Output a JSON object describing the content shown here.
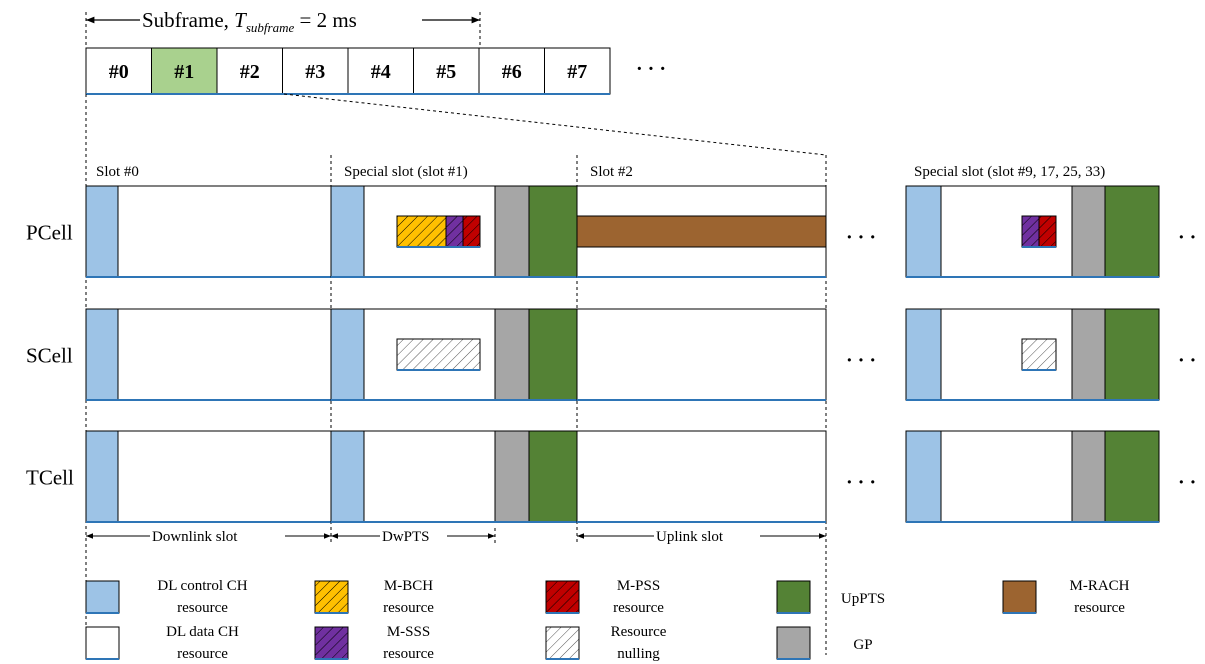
{
  "header": {
    "subframe_prefix": "Subframe, ",
    "subframe_T": "T",
    "subframe_T_sub": "subframe",
    "subframe_value": " = 2 ms",
    "subframes": [
      "#0",
      "#1",
      "#2",
      "#3",
      "#4",
      "#5",
      "#6",
      "#7"
    ],
    "highlighted_subframe": 1,
    "ellipsis": "· · ·"
  },
  "slots": {
    "slot0": "Slot #0",
    "special_slot": "Special slot (slot #1)",
    "slot2": "Slot #2",
    "special_slot_right": "Special slot (slot #9, 17, 25, 33)"
  },
  "cells": [
    {
      "label": "PCell"
    },
    {
      "label": "SCell"
    },
    {
      "label": "TCell"
    }
  ],
  "row_ellipsis": "· · ·",
  "edge_ellipsis": "· ·",
  "spans": {
    "downlink": "Downlink slot",
    "dwpts": "DwPTS",
    "uplink": "Uplink slot"
  },
  "legend": [
    {
      "lines": [
        "DL control CH",
        "resource"
      ],
      "fill": "#9dc3e6",
      "pattern": "none"
    },
    {
      "lines": [
        "DL data CH",
        "resource"
      ],
      "fill": "#ffffff",
      "pattern": "none"
    },
    {
      "lines": [
        "M-BCH",
        "resource"
      ],
      "fill": "#ffc000",
      "pattern": "hatch"
    },
    {
      "lines": [
        "M-SSS",
        "resource"
      ],
      "fill": "#7030a0",
      "pattern": "hatch"
    },
    {
      "lines": [
        "M-PSS",
        "resource"
      ],
      "fill": "#c00000",
      "pattern": "hatch"
    },
    {
      "lines": [
        "Resource",
        "nulling"
      ],
      "fill": "#ffffff",
      "pattern": "hatch"
    },
    {
      "lines": [
        "UpPTS"
      ],
      "fill": "#548235",
      "pattern": "none"
    },
    {
      "lines": [
        "GP"
      ],
      "fill": "#a6a6a6",
      "pattern": "none"
    },
    {
      "lines": [
        "M-RACH",
        "resource"
      ],
      "fill": "#9c6430",
      "pattern": "none"
    }
  ],
  "colors": {
    "dl_control": "#9dc3e6",
    "up_pts": "#548235",
    "gp": "#a6a6a6",
    "m_rach": "#9c6430",
    "m_bch": "#ffc000",
    "m_sss": "#7030a0",
    "m_pss": "#c00000",
    "highlight": "#a9d18e",
    "underline": "#2e75b6"
  }
}
